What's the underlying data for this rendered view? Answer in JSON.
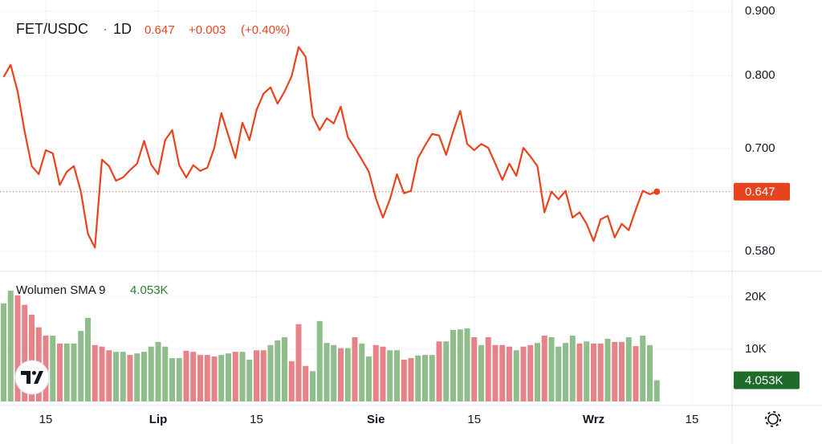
{
  "chart_data": [
    {
      "type": "line",
      "title": "FET/USDC",
      "interval": "1D",
      "last": 0.647,
      "change": {
        "value": 0.003,
        "label": "+0.003"
      },
      "change_pct": {
        "value": 0.4,
        "label": "(+0.40%)"
      },
      "color": "#e8431f",
      "log": true,
      "grid": true,
      "ylim": [
        0.56,
        0.912
      ],
      "yticks": [
        {
          "value": 0.9,
          "label": "0.900"
        },
        {
          "value": 0.8,
          "label": "0.800"
        },
        {
          "value": 0.7,
          "label": "0.700"
        },
        {
          "value": 0.58,
          "label": "0.580"
        }
      ],
      "categories": [
        null,
        null,
        null,
        null,
        null,
        null,
        "15",
        null,
        null,
        null,
        null,
        null,
        null,
        null,
        null,
        null,
        null,
        null,
        null,
        null,
        null,
        null,
        "Lip",
        null,
        null,
        null,
        null,
        null,
        null,
        null,
        null,
        null,
        null,
        null,
        null,
        null,
        "15",
        null,
        null,
        null,
        null,
        null,
        null,
        null,
        null,
        null,
        null,
        null,
        null,
        null,
        null,
        null,
        null,
        "Sie",
        null,
        null,
        null,
        null,
        null,
        null,
        null,
        null,
        null,
        null,
        null,
        null,
        null,
        "15",
        null,
        null,
        null,
        null,
        null,
        null,
        null,
        null,
        null,
        null,
        null,
        null,
        null,
        null,
        null,
        null,
        "Wrz",
        null,
        null,
        null,
        null,
        null,
        null,
        null,
        null,
        null,
        null,
        null,
        null,
        null,
        "15",
        null,
        null,
        null,
        null,
        null
      ],
      "values": [
        0.798,
        0.816,
        0.777,
        0.722,
        0.678,
        0.668,
        0.698,
        0.694,
        0.655,
        0.671,
        0.678,
        0.647,
        0.599,
        0.584,
        0.686,
        0.678,
        0.66,
        0.664,
        0.673,
        0.681,
        0.71,
        0.68,
        0.668,
        0.711,
        0.724,
        0.679,
        0.664,
        0.679,
        0.672,
        0.676,
        0.701,
        0.747,
        0.717,
        0.688,
        0.734,
        0.711,
        0.751,
        0.774,
        0.783,
        0.76,
        0.777,
        0.799,
        0.843,
        0.828,
        0.743,
        0.724,
        0.74,
        0.733,
        0.756,
        0.715,
        0.701,
        0.686,
        0.671,
        0.639,
        0.617,
        0.638,
        0.668,
        0.645,
        0.648,
        0.688,
        0.704,
        0.719,
        0.717,
        0.692,
        0.722,
        0.75,
        0.706,
        0.698,
        0.706,
        0.701,
        0.681,
        0.661,
        0.681,
        0.666,
        0.701,
        0.69,
        0.678,
        0.623,
        0.647,
        0.638,
        0.648,
        0.617,
        0.623,
        0.61,
        0.591,
        0.615,
        0.619,
        0.595,
        0.61,
        0.603,
        0.626,
        0.648,
        0.644,
        0.647,
        null,
        null,
        null,
        null,
        null,
        null,
        null,
        null,
        null,
        null
      ]
    },
    {
      "type": "bar",
      "title": "Wolumen SMA 9",
      "last": {
        "value": 4053,
        "label": "4.053K"
      },
      "ylim": [
        0,
        24600
      ],
      "yticks": [
        {
          "value": 10000,
          "label": "10K"
        },
        {
          "value": 20000,
          "label": "20K"
        }
      ],
      "values": [
        18800,
        21200,
        20300,
        18500,
        16600,
        14200,
        12600,
        12600,
        11100,
        11100,
        11100,
        13500,
        16000,
        10800,
        10500,
        9800,
        9500,
        9500,
        8900,
        9200,
        9500,
        10500,
        11400,
        10500,
        8300,
        8300,
        9700,
        9500,
        8900,
        8900,
        8600,
        8900,
        9200,
        9500,
        9500,
        8000,
        9800,
        9800,
        10800,
        11700,
        12300,
        7700,
        14800,
        6800,
        5800,
        15400,
        11200,
        10800,
        10200,
        10200,
        12300,
        11100,
        8600,
        10800,
        10500,
        9800,
        9800,
        8000,
        8300,
        8800,
        8900,
        8900,
        11500,
        11500,
        13700,
        13800,
        14000,
        12300,
        10800,
        12300,
        10800,
        10800,
        10500,
        9800,
        10500,
        10800,
        11200,
        12600,
        12300,
        10500,
        11200,
        12600,
        11100,
        11500,
        11100,
        11100,
        12000,
        11400,
        11400,
        12300,
        10600,
        12600,
        10800,
        4053,
        null,
        null,
        null,
        null,
        null,
        null,
        null,
        null,
        null,
        null
      ],
      "colors": [
        "#8fbd8b",
        "#8fbd8b",
        "#e68388",
        "#e68388",
        "#e68388",
        "#e68388",
        "#e68388",
        "#8fbd8b",
        "#e68388",
        "#8fbd8b",
        "#8fbd8b",
        "#8fbd8b",
        "#8fbd8b",
        "#e68388",
        "#e68388",
        "#e68388",
        "#8fbd8b",
        "#8fbd8b",
        "#e68388",
        "#8fbd8b",
        "#8fbd8b",
        "#8fbd8b",
        "#8fbd8b",
        "#8fbd8b",
        "#8fbd8b",
        "#8fbd8b",
        "#e68388",
        "#e68388",
        "#e68388",
        "#e68388",
        "#e68388",
        "#8fbd8b",
        "#8fbd8b",
        "#e68388",
        "#8fbd8b",
        "#8fbd8b",
        "#e68388",
        "#e68388",
        "#8fbd8b",
        "#8fbd8b",
        "#8fbd8b",
        "#e68388",
        "#e68388",
        "#e68388",
        "#8fbd8b",
        "#8fbd8b",
        "#8fbd8b",
        "#8fbd8b",
        "#e68388",
        "#8fbd8b",
        "#e68388",
        "#8fbd8b",
        "#8fbd8b",
        "#e68388",
        "#e68388",
        "#8fbd8b",
        "#8fbd8b",
        "#e68388",
        "#e68388",
        "#8fbd8b",
        "#8fbd8b",
        "#8fbd8b",
        "#e68388",
        "#8fbd8b",
        "#8fbd8b",
        "#8fbd8b",
        "#8fbd8b",
        "#e68388",
        "#8fbd8b",
        "#e68388",
        "#e68388",
        "#e68388",
        "#e68388",
        "#8fbd8b",
        "#e68388",
        "#e68388",
        "#8fbd8b",
        "#e68388",
        "#8fbd8b",
        "#8fbd8b",
        "#8fbd8b",
        "#8fbd8b",
        "#e68388",
        "#8fbd8b",
        "#e68388",
        "#e68388",
        "#8fbd8b",
        "#e68388",
        "#e68388",
        "#8fbd8b",
        "#e68388",
        "#8fbd8b",
        "#8fbd8b",
        "#8fbd8b",
        null,
        null,
        null,
        null,
        null,
        null,
        null,
        null,
        null,
        null
      ],
      "value_color": "#2e7d32",
      "label_color": "#1e6b2a"
    }
  ]
}
